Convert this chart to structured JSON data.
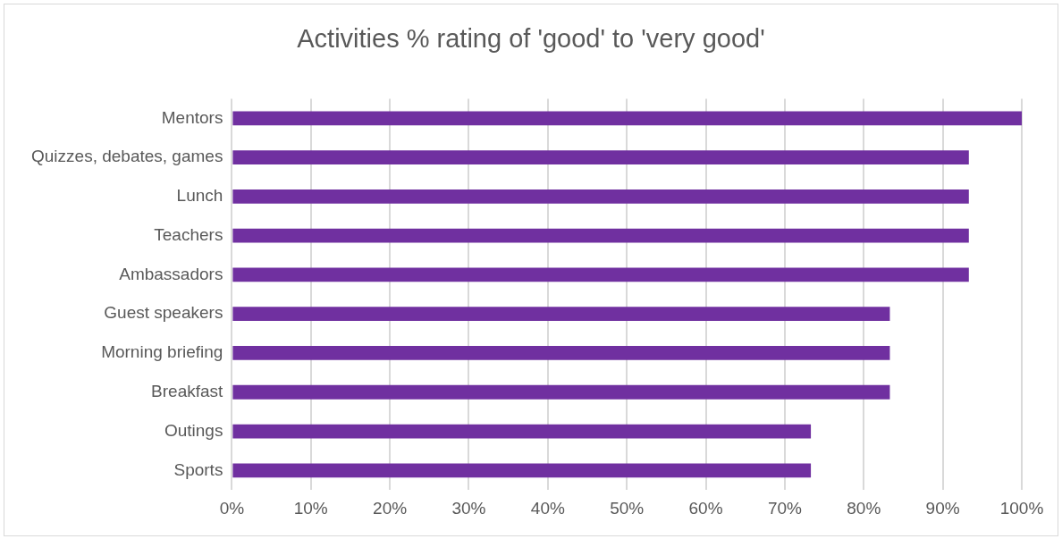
{
  "chart_data": {
    "type": "bar",
    "orientation": "horizontal",
    "title": "Activities % rating of 'good' to 'very good'",
    "categories": [
      "Mentors",
      "Quizzes, debates, games",
      "Lunch",
      "Teachers",
      "Ambassadors",
      "Guest speakers",
      "Morning briefing",
      "Breakfast",
      "Outings",
      "Sports"
    ],
    "values": [
      100,
      93.3,
      93.3,
      93.3,
      93.3,
      83.3,
      83.3,
      83.3,
      73.3,
      73.3
    ],
    "color": "#7030a0",
    "xlim": [
      0,
      100
    ],
    "xticks": [
      {
        "value": 0,
        "label": "0%"
      },
      {
        "value": 10,
        "label": "10%"
      },
      {
        "value": 20,
        "label": "20%"
      },
      {
        "value": 30,
        "label": "30%"
      },
      {
        "value": 40,
        "label": "40%"
      },
      {
        "value": 50,
        "label": "50%"
      },
      {
        "value": 60,
        "label": "60%"
      },
      {
        "value": 70,
        "label": "70%"
      },
      {
        "value": 80,
        "label": "80%"
      },
      {
        "value": 90,
        "label": "90%"
      },
      {
        "value": 100,
        "label": "100%"
      }
    ],
    "grid": "x",
    "legend": false
  }
}
